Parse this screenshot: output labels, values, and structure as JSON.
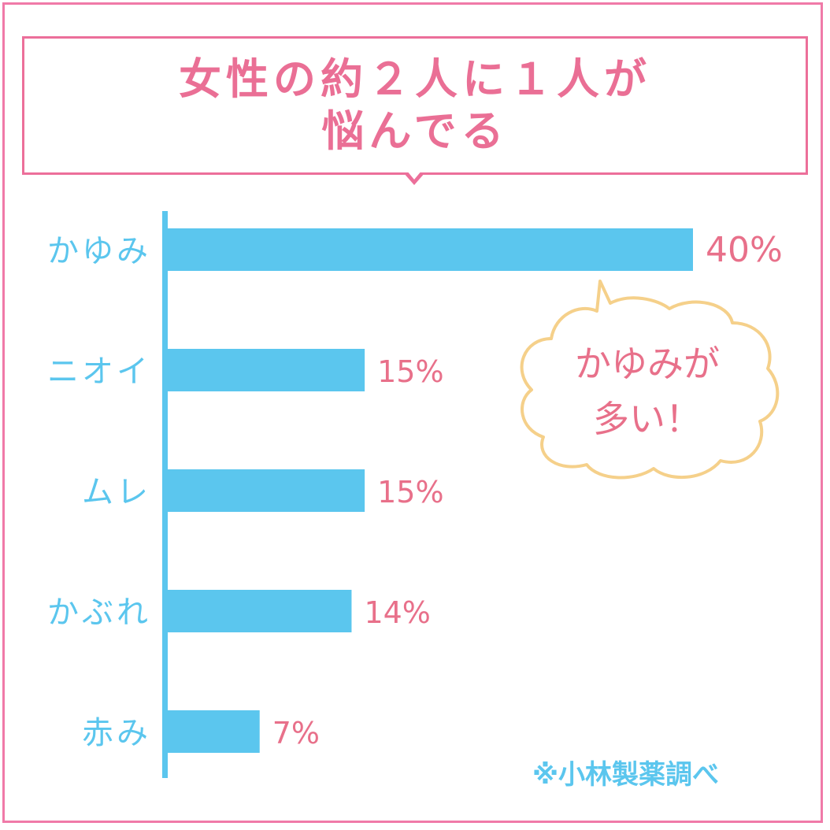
{
  "title": {
    "line1": "女性の約２人に１人が",
    "line2": "悩んでる"
  },
  "chart_data": {
    "type": "bar",
    "orientation": "horizontal",
    "categories": [
      "かゆみ",
      "ニオイ",
      "ムレ",
      "かぶれ",
      "赤み"
    ],
    "values": [
      40,
      15,
      15,
      14,
      7
    ],
    "value_labels": [
      "40%",
      "15%",
      "15%",
      "14%",
      "7%"
    ],
    "xlim": [
      0,
      40
    ],
    "grid": false,
    "colors": {
      "bar": "#5bc6ee",
      "label": "#5bc6ee",
      "value": "#e8708a",
      "frame": "#f07aa8",
      "bubble": "#f5d08a"
    }
  },
  "callout": {
    "line1": "かゆみが",
    "line2": "多い！"
  },
  "note": "※小林製薬調べ"
}
